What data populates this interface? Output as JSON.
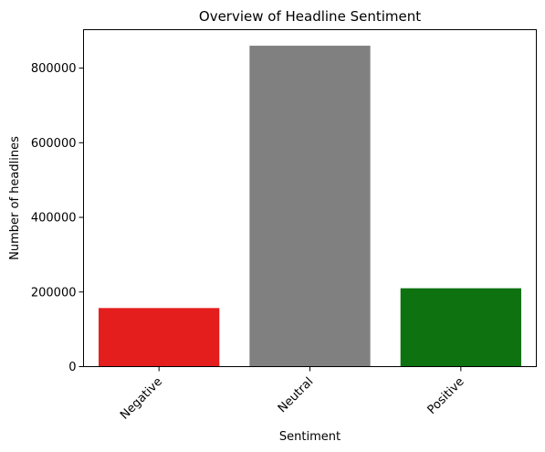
{
  "chart_data": {
    "type": "bar",
    "title": "Overview of Headline Sentiment",
    "xlabel": "Sentiment",
    "ylabel": "Number of headlines",
    "categories": [
      "Negative",
      "Neutral",
      "Positive"
    ],
    "values": [
      157000,
      860000,
      210000
    ],
    "colors": [
      "#e41d1d",
      "#808080",
      "#0e7211"
    ],
    "ylim": [
      0,
      903000
    ],
    "yticks": [
      0,
      200000,
      400000,
      600000,
      800000
    ],
    "ytick_labels": [
      "0",
      "200000",
      "400000",
      "600000",
      "800000"
    ],
    "grid": false,
    "legend": "none",
    "xtick_rotation": 45
  }
}
